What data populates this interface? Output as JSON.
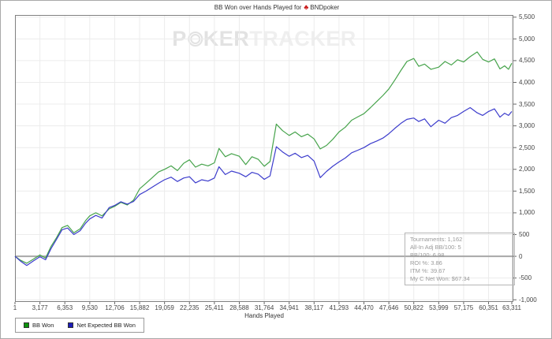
{
  "title": {
    "prefix": "BB Won over Hands Played for",
    "icon_glyph": "♣",
    "site": "BNDpoker"
  },
  "watermark": {
    "p1": "P",
    "p2": "KER",
    "p3": "TRACKER"
  },
  "stats": {
    "lines": [
      "Tournaments: 1,162",
      "All-In Adj BB/100: 5",
      "BB/100: 6.98",
      "ROI %: 3.86",
      "ITM %: 39.67",
      "My C Net Won: $67.34"
    ]
  },
  "colors": {
    "bb_won_line": "#46a34b",
    "net_expected_line": "#3c3ccc",
    "legend_green": "#0c930c",
    "legend_blue": "#1c1cb8",
    "grid": "#ececec",
    "zero_line": "#a8a8a8",
    "plot_border": "#808080",
    "tick": "#666666"
  },
  "chart_data": {
    "type": "line",
    "title": "BB Won over Hands Played for BNDpoker",
    "xlabel": "Hands Played",
    "ylabel": "",
    "grid": true,
    "legend_position": "bottom-left",
    "xlim": [
      1,
      63311
    ],
    "ylim": [
      -1050,
      5550
    ],
    "x_ticks": [
      1,
      3177,
      6353,
      9530,
      12706,
      15882,
      19059,
      22235,
      25411,
      28588,
      31764,
      34941,
      38117,
      41293,
      44470,
      47646,
      50822,
      53999,
      57175,
      60351,
      63311
    ],
    "x_tick_labels": [
      "1",
      "3,177",
      "6,353",
      "9,530",
      "12,706",
      "15,882",
      "19,059",
      "22,235",
      "25,411",
      "28,588",
      "31,764",
      "34,941",
      "38,117",
      "41,293",
      "44,470",
      "47,646",
      "50,822",
      "53,999",
      "57,175",
      "60,351",
      "63,311"
    ],
    "y_ticks": [
      5500,
      5000,
      4500,
      4000,
      3500,
      3000,
      2500,
      2000,
      1500,
      1000,
      500,
      0,
      -500,
      -1000
    ],
    "y_tick_labels": [
      "5,500",
      "5,000",
      "4,500",
      "4,000",
      "3,500",
      "3,000",
      "2,500",
      "2,000",
      "1,500",
      "1,000",
      "500",
      "0",
      "-500",
      "-1,000"
    ],
    "series": [
      {
        "name": "BB Won",
        "color": "#46a34b",
        "points": [
          [
            1,
            0
          ],
          [
            700,
            -90
          ],
          [
            1500,
            -160
          ],
          [
            2300,
            -70
          ],
          [
            3177,
            30
          ],
          [
            3900,
            -40
          ],
          [
            4600,
            230
          ],
          [
            5300,
            430
          ],
          [
            6000,
            660
          ],
          [
            6700,
            710
          ],
          [
            7500,
            540
          ],
          [
            8300,
            630
          ],
          [
            9000,
            820
          ],
          [
            9530,
            930
          ],
          [
            10300,
            1000
          ],
          [
            11100,
            930
          ],
          [
            12000,
            1090
          ],
          [
            12706,
            1150
          ],
          [
            13500,
            1240
          ],
          [
            14300,
            1180
          ],
          [
            15100,
            1290
          ],
          [
            15882,
            1550
          ],
          [
            16700,
            1680
          ],
          [
            17500,
            1810
          ],
          [
            18300,
            1940
          ],
          [
            19059,
            2000
          ],
          [
            19900,
            2080
          ],
          [
            20700,
            1970
          ],
          [
            21500,
            2140
          ],
          [
            22235,
            2220
          ],
          [
            23000,
            2050
          ],
          [
            23800,
            2120
          ],
          [
            24600,
            2080
          ],
          [
            25411,
            2150
          ],
          [
            26000,
            2480
          ],
          [
            26800,
            2290
          ],
          [
            27600,
            2360
          ],
          [
            28588,
            2300
          ],
          [
            29400,
            2110
          ],
          [
            30200,
            2290
          ],
          [
            31000,
            2230
          ],
          [
            31764,
            2070
          ],
          [
            32500,
            2180
          ],
          [
            33300,
            3040
          ],
          [
            34100,
            2890
          ],
          [
            34941,
            2780
          ],
          [
            35700,
            2860
          ],
          [
            36500,
            2750
          ],
          [
            37300,
            2810
          ],
          [
            38117,
            2700
          ],
          [
            38900,
            2470
          ],
          [
            39700,
            2550
          ],
          [
            40500,
            2690
          ],
          [
            41293,
            2860
          ],
          [
            42100,
            2970
          ],
          [
            42900,
            3130
          ],
          [
            43700,
            3210
          ],
          [
            44470,
            3280
          ],
          [
            45300,
            3420
          ],
          [
            46100,
            3560
          ],
          [
            46900,
            3700
          ],
          [
            47646,
            3850
          ],
          [
            48400,
            4050
          ],
          [
            49200,
            4280
          ],
          [
            49950,
            4480
          ],
          [
            50822,
            4550
          ],
          [
            51450,
            4370
          ],
          [
            52200,
            4420
          ],
          [
            53000,
            4300
          ],
          [
            53999,
            4350
          ],
          [
            54800,
            4480
          ],
          [
            55600,
            4400
          ],
          [
            56400,
            4520
          ],
          [
            57175,
            4470
          ],
          [
            58000,
            4590
          ],
          [
            58900,
            4700
          ],
          [
            59600,
            4530
          ],
          [
            60351,
            4470
          ],
          [
            61100,
            4540
          ],
          [
            61800,
            4310
          ],
          [
            62400,
            4380
          ],
          [
            62900,
            4300
          ],
          [
            63311,
            4440
          ]
        ]
      },
      {
        "name": "Net Expected BB Won",
        "color": "#3c3ccc",
        "points": [
          [
            1,
            0
          ],
          [
            700,
            -110
          ],
          [
            1500,
            -210
          ],
          [
            2300,
            -110
          ],
          [
            3177,
            -10
          ],
          [
            3900,
            -80
          ],
          [
            4600,
            180
          ],
          [
            5300,
            390
          ],
          [
            6000,
            610
          ],
          [
            6700,
            650
          ],
          [
            7500,
            500
          ],
          [
            8300,
            590
          ],
          [
            9000,
            760
          ],
          [
            9530,
            860
          ],
          [
            10300,
            940
          ],
          [
            11100,
            880
          ],
          [
            12000,
            1120
          ],
          [
            12706,
            1170
          ],
          [
            13500,
            1255
          ],
          [
            14300,
            1200
          ],
          [
            15100,
            1260
          ],
          [
            15882,
            1420
          ],
          [
            16700,
            1500
          ],
          [
            17500,
            1590
          ],
          [
            18300,
            1680
          ],
          [
            19059,
            1760
          ],
          [
            19900,
            1820
          ],
          [
            20700,
            1720
          ],
          [
            21500,
            1800
          ],
          [
            22235,
            1830
          ],
          [
            23000,
            1690
          ],
          [
            23800,
            1760
          ],
          [
            24600,
            1730
          ],
          [
            25411,
            1800
          ],
          [
            26000,
            2060
          ],
          [
            26800,
            1880
          ],
          [
            27600,
            1960
          ],
          [
            28588,
            1910
          ],
          [
            29400,
            1830
          ],
          [
            30200,
            1930
          ],
          [
            31000,
            1890
          ],
          [
            31764,
            1770
          ],
          [
            32500,
            1850
          ],
          [
            33300,
            2520
          ],
          [
            34100,
            2400
          ],
          [
            34941,
            2300
          ],
          [
            35700,
            2370
          ],
          [
            36500,
            2270
          ],
          [
            37300,
            2320
          ],
          [
            38117,
            2190
          ],
          [
            38900,
            1810
          ],
          [
            39700,
            1950
          ],
          [
            40500,
            2070
          ],
          [
            41293,
            2170
          ],
          [
            42100,
            2260
          ],
          [
            42900,
            2380
          ],
          [
            43700,
            2440
          ],
          [
            44470,
            2500
          ],
          [
            45300,
            2590
          ],
          [
            46100,
            2650
          ],
          [
            46900,
            2720
          ],
          [
            47646,
            2820
          ],
          [
            48400,
            2940
          ],
          [
            49200,
            3060
          ],
          [
            49950,
            3150
          ],
          [
            50822,
            3180
          ],
          [
            51450,
            3100
          ],
          [
            52200,
            3160
          ],
          [
            53000,
            2980
          ],
          [
            53999,
            3130
          ],
          [
            54800,
            3060
          ],
          [
            55600,
            3190
          ],
          [
            56400,
            3240
          ],
          [
            57175,
            3330
          ],
          [
            58000,
            3420
          ],
          [
            58900,
            3300
          ],
          [
            59600,
            3240
          ],
          [
            60351,
            3330
          ],
          [
            61100,
            3390
          ],
          [
            61800,
            3200
          ],
          [
            62400,
            3290
          ],
          [
            62900,
            3240
          ],
          [
            63311,
            3330
          ]
        ]
      }
    ]
  }
}
